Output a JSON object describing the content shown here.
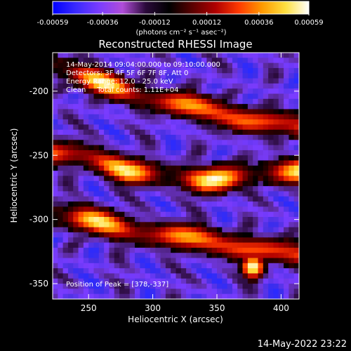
{
  "colorbar": {
    "tick_labels": [
      "-0.00059",
      "-0.00036",
      "-0.00012",
      "0.00012",
      "0.00036",
      "0.00059"
    ],
    "tick_values": [
      -0.00059,
      -0.00036,
      -0.00012,
      0.00012,
      0.00036,
      0.00059
    ],
    "range": [
      -0.00059,
      0.00059
    ],
    "units_label": "(photons cm⁻² s⁻¹ asec⁻²)",
    "colors": [
      "#0000ff",
      "#3a2aff",
      "#7a3cff",
      "#b04dd8",
      "#2a0a3a",
      "#000000",
      "#5a0000",
      "#b00000",
      "#ff3a00",
      "#ff9a00",
      "#ffe040",
      "#ffffff"
    ]
  },
  "chart_data": {
    "type": "heatmap",
    "title": "Reconstructed RHESSI Image",
    "xlabel": "Heliocentric X (arcsec)",
    "ylabel": "Heliocentric Y (arcsec)",
    "xlim": [
      222,
      414
    ],
    "ylim": [
      -362,
      -170
    ],
    "x_ticks": [
      250,
      300,
      350,
      400
    ],
    "y_ticks": [
      -200,
      -250,
      -300,
      -350
    ],
    "x_tick_labels": [
      "250",
      "300",
      "350",
      "400"
    ],
    "y_tick_labels": [
      "-200",
      "-250",
      "-300",
      "-350"
    ],
    "info_lines": [
      "14-May-2014 09:04:00.000 to 09:10:00.000",
      "Detectors: 3F 4F 5F 6F 7F 8F, Att 0",
      "Energy Range: 12.0 - 25.0 keV",
      "Clean     Total counts: 1.11E+04"
    ],
    "peak_label": "Position of Peak = [378,-337]",
    "peak_position": [
      378,
      -337
    ],
    "bright_bands": [
      {
        "x": [
          222,
          250,
          280,
          310,
          340,
          370,
          414
        ],
        "y": [
          -180,
          -190,
          -200,
          -208,
          -214,
          -222,
          -228
        ]
      },
      {
        "x": [
          222,
          250,
          280,
          310,
          340,
          370,
          414
        ],
        "y": [
          -248,
          -252,
          -262,
          -266,
          -270,
          -266,
          -262
        ]
      },
      {
        "x": [
          222,
          250,
          280,
          310,
          340,
          370,
          414
        ],
        "y": [
          -296,
          -300,
          -308,
          -312,
          -316,
          -322,
          -328
        ]
      }
    ]
  },
  "footer": {
    "timestamp": "14-May-2022 23:22"
  }
}
